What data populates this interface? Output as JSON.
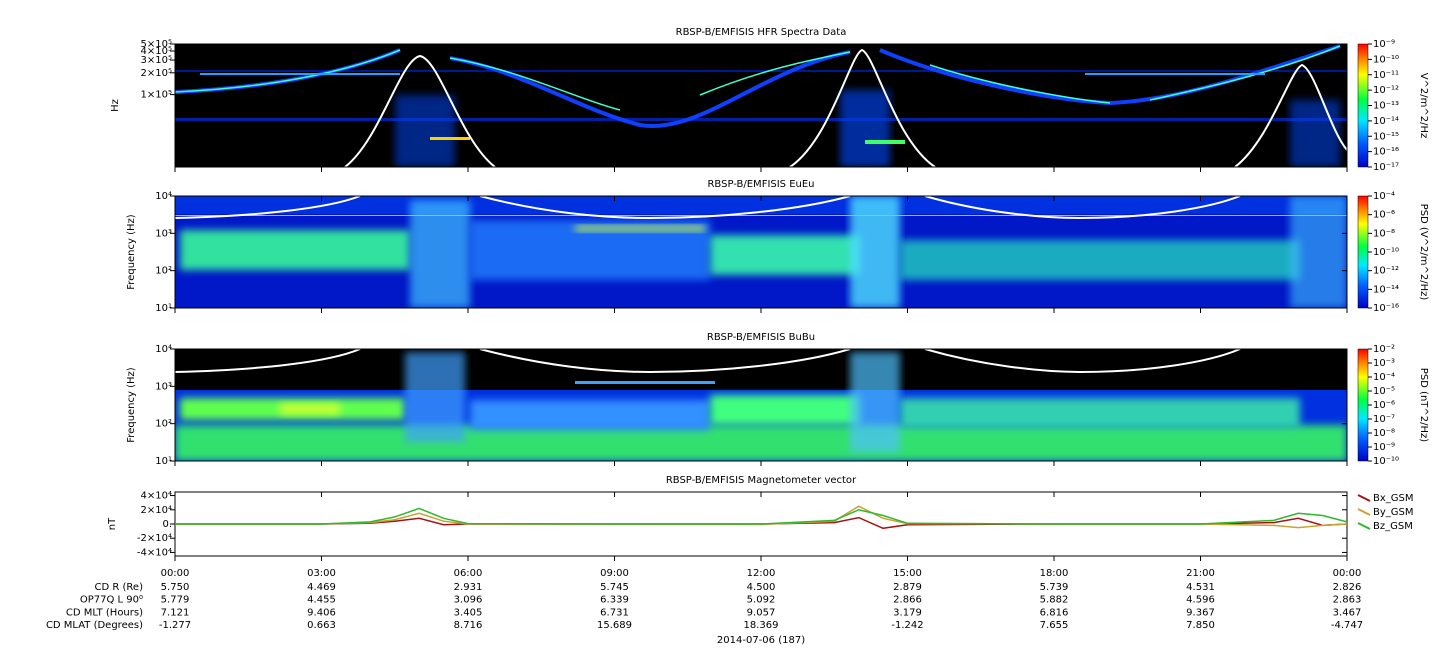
{
  "chart_data": [
    {
      "type": "spectrogram",
      "title": "RBSP-B/EMFISIS  HFR Spectra Data",
      "ylabel": "Hz",
      "log_scale": true,
      "ylim": [
        10000,
        500000
      ],
      "yticks": [
        {
          "value": 500000,
          "label": "5×10⁵"
        },
        {
          "value": 400000,
          "label": "4×10⁵"
        },
        {
          "value": 300000,
          "label": "3×10⁵"
        },
        {
          "value": 200000,
          "label": "2×10⁵"
        },
        {
          "value": 100000,
          "label": "1×10⁵"
        }
      ],
      "colorbar": {
        "label": "V^2/m^2/Hz",
        "lim": [
          1e-17,
          1e-09
        ],
        "ticks": [
          {
            "value": 1e-09,
            "label": "10⁻⁹"
          },
          {
            "value": 1e-10,
            "label": "10⁻¹⁰"
          },
          {
            "value": 1e-11,
            "label": "10⁻¹¹"
          },
          {
            "value": 1e-12,
            "label": "10⁻¹²"
          },
          {
            "value": 1e-13,
            "label": "10⁻¹³"
          },
          {
            "value": 1e-14,
            "label": "10⁻¹⁴"
          },
          {
            "value": 1e-15,
            "label": "10⁻¹⁵"
          },
          {
            "value": 1e-16,
            "label": "10⁻¹⁶"
          },
          {
            "value": 1e-17,
            "label": "10⁻¹⁷"
          }
        ]
      }
    },
    {
      "type": "spectrogram",
      "title": "RBSP-B/EMFISIS  EuEu",
      "ylabel": "Frequency (Hz)",
      "log_scale": true,
      "ylim": [
        10,
        10000
      ],
      "yticks": [
        {
          "value": 10000,
          "label": "10⁴"
        },
        {
          "value": 1000,
          "label": "10³"
        },
        {
          "value": 100,
          "label": "10²"
        },
        {
          "value": 10,
          "label": "10¹"
        }
      ],
      "colorbar": {
        "label": "PSD (V^2/m^2/Hz)",
        "lim": [
          1e-16,
          0.0001
        ],
        "ticks": [
          {
            "value": 0.0001,
            "label": "10⁻⁴"
          },
          {
            "value": 1e-06,
            "label": "10⁻⁶"
          },
          {
            "value": 1e-08,
            "label": "10⁻⁸"
          },
          {
            "value": 1e-10,
            "label": "10⁻¹⁰"
          },
          {
            "value": 1e-12,
            "label": "10⁻¹²"
          },
          {
            "value": 1e-14,
            "label": "10⁻¹⁴"
          },
          {
            "value": 1e-16,
            "label": "10⁻¹⁶"
          }
        ]
      }
    },
    {
      "type": "spectrogram",
      "title": "RBSP-B/EMFISIS  BuBu",
      "ylabel": "Frequency (Hz)",
      "log_scale": true,
      "ylim": [
        10,
        10000
      ],
      "yticks": [
        {
          "value": 10000,
          "label": "10⁴"
        },
        {
          "value": 1000,
          "label": "10³"
        },
        {
          "value": 100,
          "label": "10²"
        },
        {
          "value": 10,
          "label": "10¹"
        }
      ],
      "colorbar": {
        "label": "PSD (nT^2/Hz)",
        "lim": [
          1e-10,
          0.01
        ],
        "ticks": [
          {
            "value": 0.01,
            "label": "10⁻²"
          },
          {
            "value": 0.001,
            "label": "10⁻³"
          },
          {
            "value": 0.0001,
            "label": "10⁻⁴"
          },
          {
            "value": 1e-05,
            "label": "10⁻⁵"
          },
          {
            "value": 1e-06,
            "label": "10⁻⁶"
          },
          {
            "value": 1e-07,
            "label": "10⁻⁷"
          },
          {
            "value": 1e-08,
            "label": "10⁻⁸"
          },
          {
            "value": 1e-09,
            "label": "10⁻⁹"
          },
          {
            "value": 1e-10,
            "label": "10⁻¹⁰"
          }
        ]
      }
    },
    {
      "type": "line",
      "title": "RBSP-B/EMFISIS  Magnetometer vector",
      "ylabel": "nT",
      "legend": "right",
      "ylim": [
        -45000,
        45000
      ],
      "yticks": [
        {
          "value": 40000,
          "label": "4×10⁴"
        },
        {
          "value": 20000,
          "label": "2×10⁴"
        },
        {
          "value": 0,
          "label": "0."
        },
        {
          "value": -20000,
          "label": "-2×10⁴"
        },
        {
          "value": -40000,
          "label": "-4×10⁴"
        }
      ],
      "xlim": [
        0,
        24
      ],
      "xticks": [
        {
          "value": 0,
          "label": "00:00"
        },
        {
          "value": 3,
          "label": "03:00"
        },
        {
          "value": 6,
          "label": "06:00"
        },
        {
          "value": 9,
          "label": "09:00"
        },
        {
          "value": 12,
          "label": "12:00"
        },
        {
          "value": 15,
          "label": "15:00"
        },
        {
          "value": 18,
          "label": "18:00"
        },
        {
          "value": 21,
          "label": "21:00"
        },
        {
          "value": 24,
          "label": "00:00"
        }
      ],
      "x": [
        0,
        3,
        4,
        4.5,
        5,
        5.5,
        6,
        9,
        12,
        13.5,
        14,
        14.5,
        15,
        18,
        21,
        22.5,
        23,
        23.5,
        24
      ],
      "series": [
        {
          "name": "Bx_GSM",
          "color": "#a31515",
          "values": [
            0,
            0,
            1000,
            4000,
            8000,
            -1000,
            0,
            0,
            0,
            2000,
            9000,
            -6000,
            -1000,
            0,
            0,
            2000,
            8000,
            -2000,
            0
          ]
        },
        {
          "name": "By_GSM",
          "color": "#c9a233",
          "values": [
            0,
            0,
            2000,
            6000,
            15000,
            4000,
            0,
            0,
            -500,
            4000,
            25000,
            8000,
            500,
            0,
            0,
            -2000,
            -5000,
            -2000,
            0
          ]
        },
        {
          "name": "Bz_GSM",
          "color": "#2eb82e",
          "values": [
            0,
            0,
            3000,
            10000,
            22000,
            8000,
            500,
            0,
            0,
            5000,
            20000,
            12000,
            1000,
            0,
            0,
            5000,
            15000,
            12000,
            3000
          ]
        }
      ]
    }
  ],
  "ephemeris": {
    "labels": [
      "CD R (Re)",
      "OP77Q L 90⁰",
      "CD MLT (Hours)",
      "CD MLAT (Degrees)"
    ],
    "rows": [
      [
        "5.750",
        "4.469",
        "2.931",
        "5.745",
        "4.500",
        "2.879",
        "5.739",
        "4.531",
        "2.826"
      ],
      [
        "5.779",
        "4.455",
        "3.096",
        "6.339",
        "5.092",
        "2.866",
        "5.882",
        "4.596",
        "2.863"
      ],
      [
        "7.121",
        "9.406",
        "3.405",
        "6.731",
        "9.057",
        "3.179",
        "6.816",
        "9.367",
        "3.467"
      ],
      [
        "-1.277",
        "0.663",
        "8.716",
        "15.689",
        "18.369",
        "-1.242",
        "7.655",
        "7.850",
        "-4.747"
      ]
    ]
  },
  "date": "2014-07-06 (187)"
}
